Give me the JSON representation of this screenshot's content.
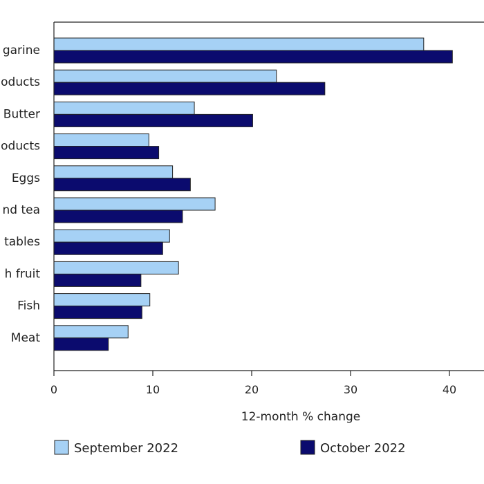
{
  "chart_data": {
    "type": "bar",
    "orientation": "horizontal",
    "categories": [
      "garine",
      "oducts",
      "Butter",
      "oducts",
      "Eggs",
      "nd tea",
      "tables",
      "h fruit",
      "Fish",
      "Meat"
    ],
    "series": [
      {
        "name": "September 2022",
        "color": "#a6d1f5",
        "values": [
          37.4,
          22.5,
          14.2,
          9.6,
          12.0,
          16.3,
          11.7,
          12.6,
          9.7,
          7.5
        ]
      },
      {
        "name": "October 2022",
        "color": "#0b0b6e",
        "values": [
          40.3,
          27.4,
          20.1,
          10.6,
          13.8,
          13.0,
          11.0,
          8.8,
          8.9,
          5.5
        ]
      }
    ],
    "xlabel": "12-month % change",
    "ylabel": "",
    "xlim": [
      0,
      40
    ],
    "xticks": [
      0,
      10,
      20,
      30,
      40
    ],
    "grid": false,
    "legend_position": "bottom"
  }
}
